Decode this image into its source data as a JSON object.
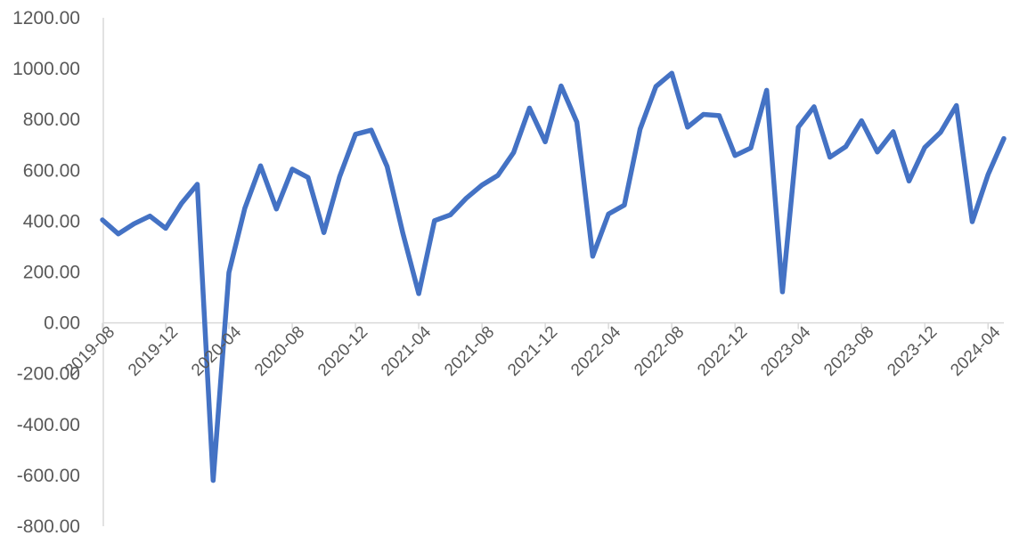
{
  "chart_data": {
    "type": "line",
    "title": "",
    "xlabel": "",
    "ylabel": "",
    "ylim": [
      -800,
      1200
    ],
    "y_tick_values": [
      1200,
      1000,
      800,
      600,
      400,
      200,
      0,
      -200,
      -400,
      -600,
      -800
    ],
    "y_tick_labels": [
      "1200.00",
      "1000.00",
      "800.00",
      "600.00",
      "400.00",
      "200.00",
      "0.00",
      "-200.00",
      "-400.00",
      "-600.00",
      "-800.00"
    ],
    "x_tick_labels": [
      "2019-08",
      "2019-12",
      "2020-04",
      "2020-08",
      "2020-12",
      "2021-04",
      "2021-08",
      "2021-12",
      "2022-04",
      "2022-08",
      "2022-12",
      "2023-04",
      "2023-08",
      "2023-12",
      "2024-04"
    ],
    "x": [
      "2019-08",
      "2019-09",
      "2019-10",
      "2019-11",
      "2019-12",
      "2020-01",
      "2020-02",
      "2020-03",
      "2020-04",
      "2020-05",
      "2020-06",
      "2020-07",
      "2020-08",
      "2020-09",
      "2020-10",
      "2020-11",
      "2020-12",
      "2021-01",
      "2021-02",
      "2021-03",
      "2021-04",
      "2021-05",
      "2021-06",
      "2021-07",
      "2021-08",
      "2021-09",
      "2021-10",
      "2021-11",
      "2021-12",
      "2022-01",
      "2022-02",
      "2022-03",
      "2022-04",
      "2022-05",
      "2022-06",
      "2022-07",
      "2022-08",
      "2022-09",
      "2022-10",
      "2022-11",
      "2022-12",
      "2023-01",
      "2023-02",
      "2023-03",
      "2023-04",
      "2023-05",
      "2023-06",
      "2023-07",
      "2023-08",
      "2023-09",
      "2023-10",
      "2023-11",
      "2023-12",
      "2024-01",
      "2024-02",
      "2024-03",
      "2024-04",
      "2024-05"
    ],
    "series": [
      {
        "color": "#4472c4",
        "values": [
          405,
          350,
          390,
          420,
          372,
          470,
          545,
          -620,
          198,
          450,
          618,
          448,
          605,
          572,
          355,
          575,
          742,
          758,
          615,
          352,
          115,
          402,
          425,
          490,
          542,
          580,
          670,
          845,
          712,
          932,
          790,
          262,
          428,
          463,
          762,
          930,
          982,
          770,
          820,
          815,
          658,
          688,
          915,
          122,
          770,
          850,
          652,
          693,
          795,
          672,
          752,
          558,
          690,
          750,
          855,
          398,
          583,
          725
        ]
      }
    ]
  }
}
